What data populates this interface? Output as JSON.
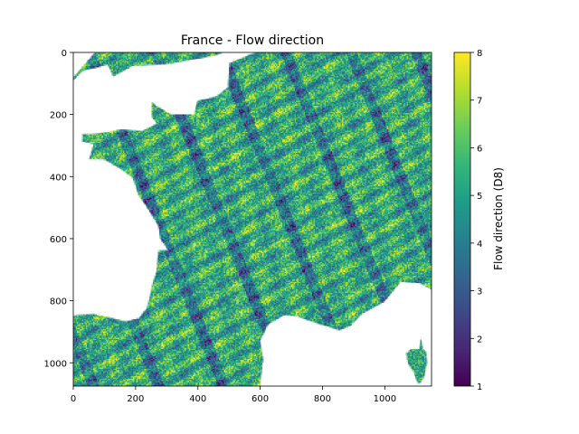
{
  "chart_data": {
    "type": "heatmap",
    "title": "France - Flow direction",
    "xlabel": "",
    "ylabel": "",
    "xlim": [
      0,
      1150
    ],
    "ylim": [
      1075,
      0
    ],
    "xticks": [
      "0",
      "200",
      "400",
      "600",
      "800",
      "1000"
    ],
    "yticks": [
      "0",
      "200",
      "400",
      "600",
      "800",
      "1000"
    ],
    "colormap": "viridis",
    "colorbar": {
      "label": "Flow direction (D8)",
      "range": [
        1,
        8
      ],
      "ticks": [
        "1",
        "2",
        "3",
        "4",
        "5",
        "6",
        "7",
        "8"
      ]
    },
    "nodata_color": "#ffffff",
    "grid": false
  }
}
